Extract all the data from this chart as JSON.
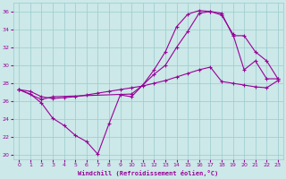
{
  "xlabel": "Windchill (Refroidissement éolien,°C)",
  "bg_color": "#cce8e8",
  "grid_color": "#99cccc",
  "line_color": "#990099",
  "xlim": [
    -0.5,
    23.5
  ],
  "ylim": [
    19.5,
    37
  ],
  "xticks": [
    0,
    1,
    2,
    3,
    4,
    5,
    6,
    7,
    8,
    9,
    10,
    11,
    12,
    13,
    14,
    15,
    16,
    17,
    18,
    19,
    20,
    21,
    22,
    23
  ],
  "yticks": [
    20,
    22,
    24,
    26,
    28,
    30,
    32,
    34,
    36
  ],
  "series": [
    {
      "x": [
        0,
        1,
        2,
        3,
        4,
        5,
        6,
        7,
        8,
        9,
        10,
        11,
        12,
        13,
        14,
        15,
        16,
        17,
        18,
        19,
        20,
        21,
        22,
        23
      ],
      "y": [
        27.3,
        26.8,
        25.8,
        24.1,
        23.3,
        22.2,
        21.5,
        20.1,
        23.5,
        26.7,
        26.5,
        27.8,
        29.5,
        31.5,
        34.3,
        35.7,
        36.1,
        36.0,
        35.6,
        33.5,
        29.5,
        30.5,
        28.5,
        28.5
      ]
    },
    {
      "x": [
        0,
        2,
        3,
        10,
        11,
        12,
        13,
        14,
        15,
        16,
        17,
        18,
        19,
        20,
        21,
        22,
        23
      ],
      "y": [
        27.3,
        26.2,
        26.5,
        26.8,
        27.8,
        29.0,
        30.0,
        32.0,
        33.8,
        35.8,
        36.0,
        35.8,
        33.3,
        33.3,
        31.5,
        30.5,
        28.5
      ]
    },
    {
      "x": [
        0,
        1,
        2,
        3,
        4,
        5,
        6,
        7,
        8,
        9,
        10,
        11,
        12,
        13,
        14,
        15,
        16,
        17,
        18,
        19,
        20,
        21,
        22,
        23
      ],
      "y": [
        27.3,
        27.1,
        26.5,
        26.3,
        26.4,
        26.5,
        26.7,
        26.9,
        27.1,
        27.3,
        27.5,
        27.7,
        28.0,
        28.3,
        28.7,
        29.1,
        29.5,
        29.8,
        28.2,
        28.0,
        27.8,
        27.6,
        27.5,
        28.3
      ]
    }
  ]
}
